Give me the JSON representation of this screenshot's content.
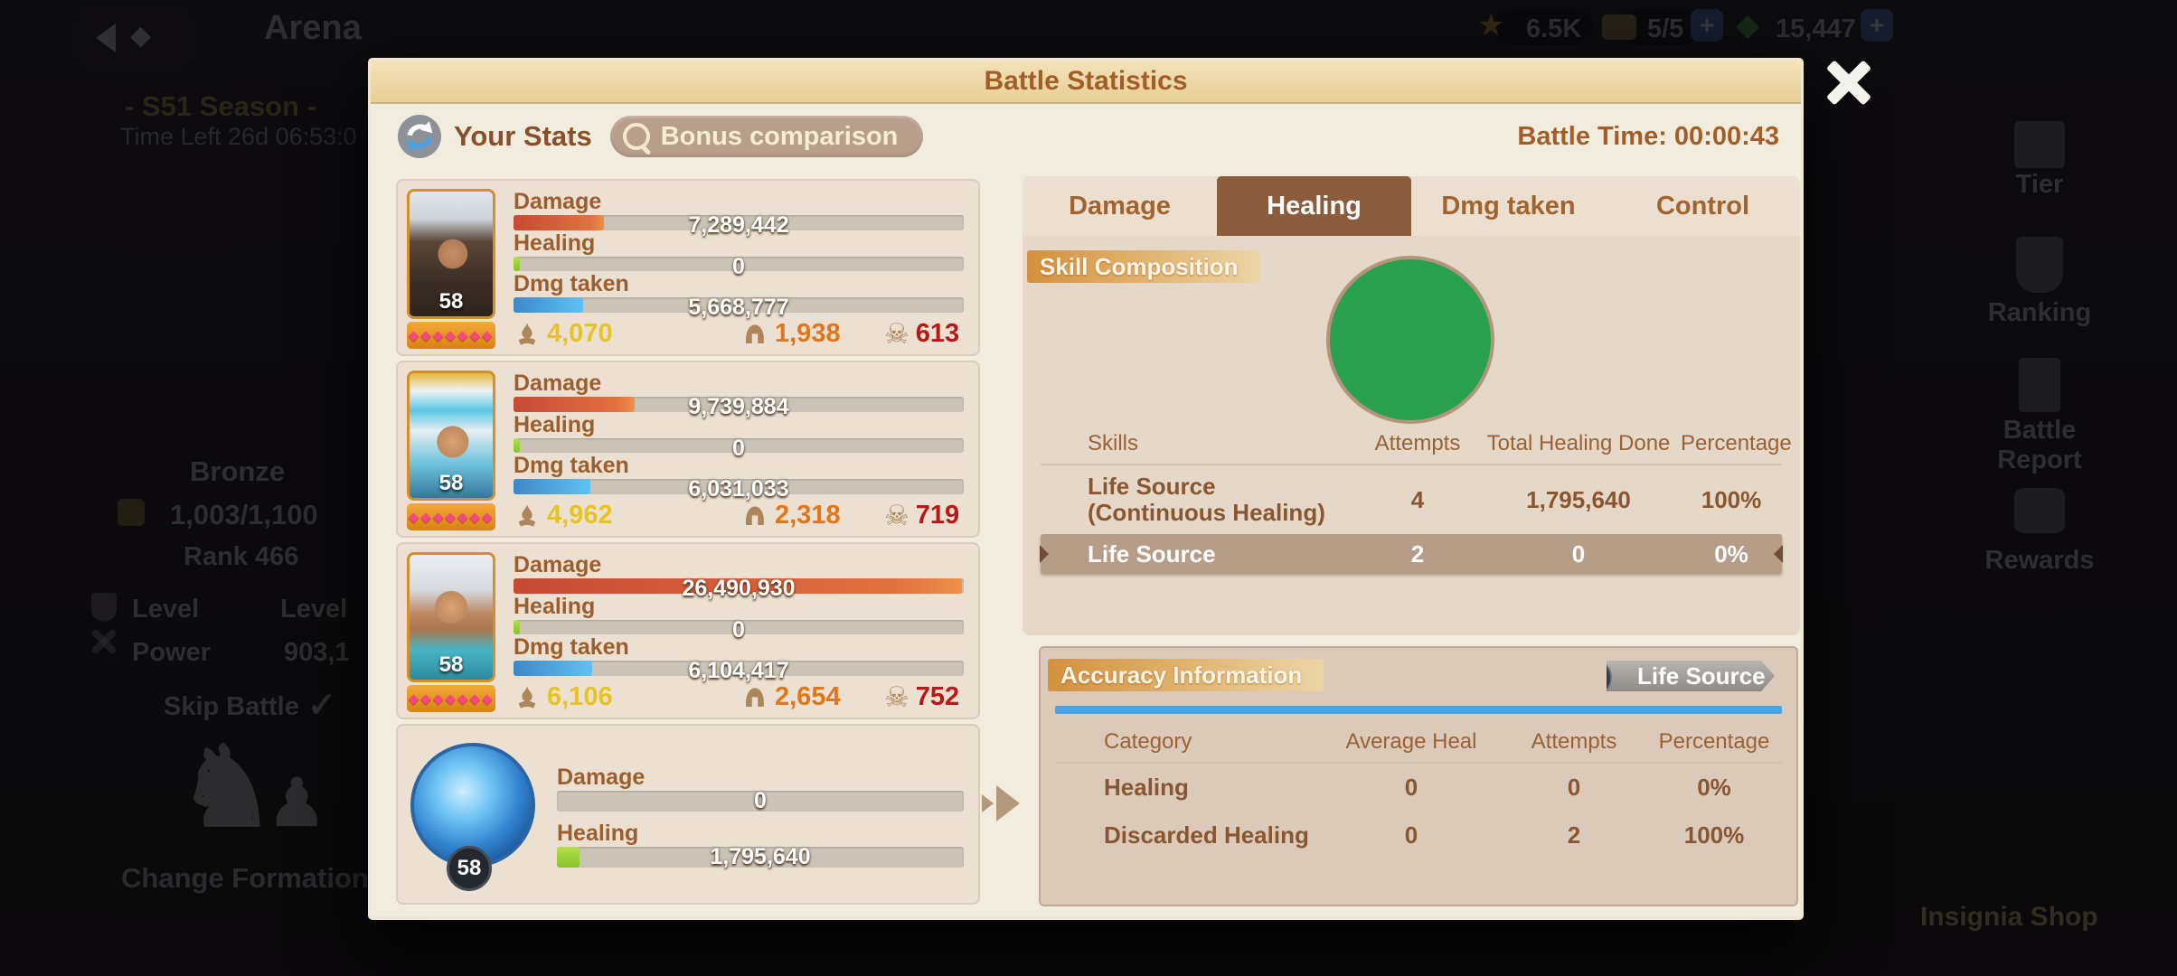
{
  "background": {
    "title": "Arena",
    "season": "- S51 Season -",
    "time_left": "Time Left 26d 06:53:0",
    "resources": [
      {
        "value": "6.5K"
      },
      {
        "value": "5/5"
      },
      {
        "value": "15,447"
      }
    ],
    "plus": "+",
    "league": "Bronze",
    "league_points": "1,003/1,100",
    "rank": "Rank 466",
    "level_label_left": "Level",
    "level_label_right": "Level",
    "power_label": "Power",
    "power_value": "903,1",
    "skip_battle": "Skip Battle",
    "check": "✓",
    "knight": "♞",
    "pawn": "♟",
    "change_formation": "Change Formation",
    "sidebar": [
      {
        "label": "Tier"
      },
      {
        "label": "Ranking"
      },
      {
        "label": "Battle Report"
      },
      {
        "label": "Rewards"
      }
    ],
    "insignia_shop": "Insignia Shop"
  },
  "modal": {
    "title": "Battle Statistics",
    "your_stats": "Your Stats",
    "bonus_comparison": "Bonus comparison",
    "battle_time": "Battle Time: 00:00:43",
    "gem_row": "◆◆◆◆◆◆◆",
    "skull_glyph": "☠",
    "heroes": [
      {
        "level": "58",
        "rows": [
          {
            "label": "Damage",
            "value": "7,289,442",
            "pct": 20
          },
          {
            "label": "Healing",
            "value": "0",
            "pct": 1.5
          },
          {
            "label": "Dmg taken",
            "value": "5,668,777",
            "pct": 15.5
          }
        ],
        "kills": {
          "heal": "4,070",
          "assist": "1,938",
          "kills": "613"
        }
      },
      {
        "level": "58",
        "rows": [
          {
            "label": "Damage",
            "value": "9,739,884",
            "pct": 27
          },
          {
            "label": "Healing",
            "value": "0",
            "pct": 1.5
          },
          {
            "label": "Dmg taken",
            "value": "6,031,033",
            "pct": 17
          }
        ],
        "kills": {
          "heal": "4,962",
          "assist": "2,318",
          "kills": "719"
        }
      },
      {
        "level": "58",
        "rows": [
          {
            "label": "Damage",
            "value": "26,490,930",
            "pct": 99.5
          },
          {
            "label": "Healing",
            "value": "0",
            "pct": 1.5
          },
          {
            "label": "Dmg taken",
            "value": "6,104,417",
            "pct": 17.5
          }
        ],
        "kills": {
          "heal": "6,106",
          "assist": "2,654",
          "kills": "752"
        }
      },
      {
        "level": "58",
        "rows": [
          {
            "label": "Damage",
            "value": "0",
            "pct": 0
          },
          {
            "label": "Healing",
            "value": "1,795,640",
            "pct": 5.5
          }
        ]
      }
    ],
    "tabs": [
      {
        "label": "Damage"
      },
      {
        "label": "Healing"
      },
      {
        "label": "Dmg taken"
      },
      {
        "label": "Control"
      }
    ],
    "skill_composition": {
      "badge": "Skill Composition",
      "headers": {
        "skills": "Skills",
        "attempts": "Attempts",
        "total": "Total Healing Done",
        "pct": "Percentage"
      },
      "rows": [
        {
          "name": "Life Source (Continuous Healing)",
          "attempts": "4",
          "total": "1,795,640",
          "pct": "100%"
        },
        {
          "name": "Life Source",
          "attempts": "2",
          "total": "0",
          "pct": "0%"
        }
      ]
    },
    "accuracy": {
      "badge": "Accuracy Information",
      "selector": "Life Source",
      "headers": {
        "category": "Category",
        "avg": "Average Heal",
        "attempts": "Attempts",
        "pct": "Percentage"
      },
      "rows": [
        {
          "name": "Healing",
          "avg": "0",
          "attempts": "0",
          "pct": "0%"
        },
        {
          "name": "Discarded Healing",
          "avg": "0",
          "attempts": "2",
          "pct": "100%"
        }
      ]
    }
  },
  "colors": {
    "pie_green": "#2aa14e",
    "legend_blue": "#5cb0e6",
    "damage_bar": "#e1703e",
    "dmg_taken_bar": "#5fc2f2",
    "healing_bar": "#9ed438",
    "active_tab": "#8a5c3c",
    "accent_brown": "#8a5630",
    "header_tan": "#ecd8a8"
  },
  "chart_data": {
    "type": "pie",
    "title": "Skill Composition",
    "labels": [
      "Life Source (Continuous Healing)",
      "Life Source"
    ],
    "values": [
      100,
      0
    ],
    "colors": [
      "#2aa14e",
      "#5cb0e6"
    ],
    "legend_position": "table-below"
  }
}
